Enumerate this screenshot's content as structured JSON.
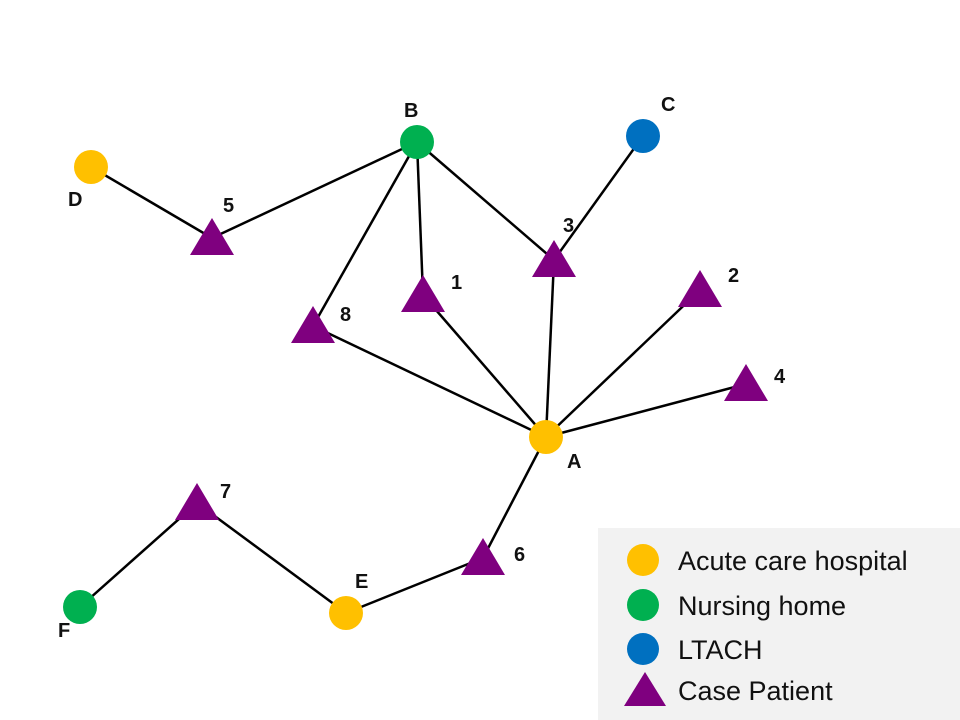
{
  "colors": {
    "acute_care_hospital": "#FFC000",
    "nursing_home": "#00B050",
    "ltach": "#0070C0",
    "case_patient": "#7F007F",
    "edge": "#000000",
    "legend_bg": "#F2F2F2"
  },
  "nodes": {
    "A": {
      "label": "A",
      "kind": "acute_care_hospital"
    },
    "B": {
      "label": "B",
      "kind": "nursing_home"
    },
    "C": {
      "label": "C",
      "kind": "ltach"
    },
    "D": {
      "label": "D",
      "kind": "acute_care_hospital"
    },
    "E": {
      "label": "E",
      "kind": "acute_care_hospital"
    },
    "F": {
      "label": "F",
      "kind": "nursing_home"
    },
    "P1": {
      "label": "1",
      "kind": "case_patient"
    },
    "P2": {
      "label": "2",
      "kind": "case_patient"
    },
    "P3": {
      "label": "3",
      "kind": "case_patient"
    },
    "P4": {
      "label": "4",
      "kind": "case_patient"
    },
    "P5": {
      "label": "5",
      "kind": "case_patient"
    },
    "P6": {
      "label": "6",
      "kind": "case_patient"
    },
    "P7": {
      "label": "7",
      "kind": "case_patient"
    },
    "P8": {
      "label": "8",
      "kind": "case_patient"
    }
  },
  "edges": [
    [
      "D",
      "P5"
    ],
    [
      "P5",
      "B"
    ],
    [
      "B",
      "P8"
    ],
    [
      "B",
      "P1"
    ],
    [
      "B",
      "P3"
    ],
    [
      "C",
      "P3"
    ],
    [
      "P3",
      "A"
    ],
    [
      "P1",
      "A"
    ],
    [
      "P8",
      "A"
    ],
    [
      "P2",
      "A"
    ],
    [
      "P4",
      "A"
    ],
    [
      "A",
      "P6"
    ],
    [
      "P6",
      "E"
    ],
    [
      "E",
      "P7"
    ],
    [
      "P7",
      "F"
    ]
  ],
  "legend": {
    "items": [
      {
        "label": "Acute care hospital",
        "icon": "circle-icon",
        "kind": "acute_care_hospital"
      },
      {
        "label": "Nursing home",
        "icon": "circle-icon",
        "kind": "nursing_home"
      },
      {
        "label": "LTACH",
        "icon": "circle-icon",
        "kind": "ltach"
      },
      {
        "label": "Case Patient",
        "icon": "triangle-icon",
        "kind": "case_patient"
      }
    ]
  }
}
